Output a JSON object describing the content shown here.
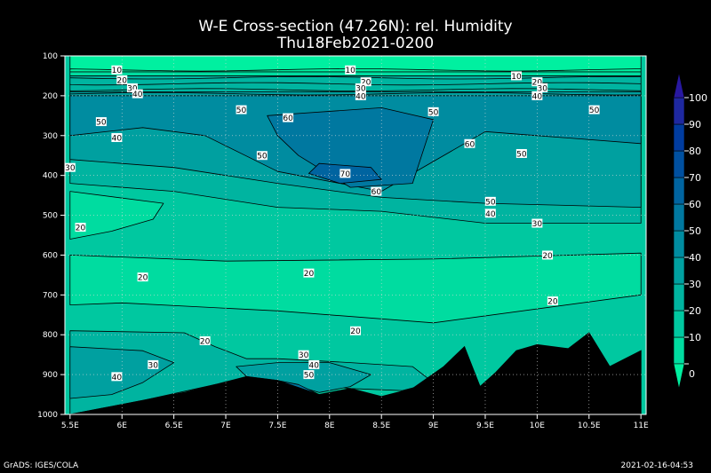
{
  "chart_data": {
    "type": "heatmap",
    "title": "W-E Cross-section (47.26N): rel. Humidity",
    "subtitle": "Thu18Feb2021-0200",
    "x_ticks": [
      "5.5E",
      "6E",
      "6.5E",
      "7E",
      "7.5E",
      "8E",
      "8.5E",
      "9E",
      "9.5E",
      "10E",
      "10.5E",
      "11E"
    ],
    "x_values": [
      5.5,
      6.0,
      6.5,
      7.0,
      7.5,
      8.0,
      8.5,
      9.0,
      9.5,
      10.0,
      10.5,
      11.0
    ],
    "xlim": [
      5.45,
      11.05
    ],
    "y_ticks": [
      "100",
      "200",
      "300",
      "400",
      "500",
      "600",
      "700",
      "800",
      "900",
      "1000"
    ],
    "y_values": [
      100,
      200,
      300,
      400,
      500,
      600,
      700,
      800,
      900,
      1000
    ],
    "ylim": [
      100,
      1000
    ],
    "grid": true,
    "colorbar": {
      "levels": [
        0,
        10,
        20,
        30,
        40,
        50,
        60,
        70,
        80,
        90,
        100
      ],
      "colors": [
        "#00f0a0",
        "#00dca0",
        "#00c8a0",
        "#00b4a0",
        "#00a0a0",
        "#008ca0",
        "#0078a0",
        "#0064a0",
        "#0050a0",
        "#003ca0",
        "#1e28a0",
        "#2818a0"
      ]
    },
    "contour_labels": [
      {
        "text": "10",
        "x": 5.95,
        "y": 135
      },
      {
        "text": "10",
        "x": 8.2,
        "y": 135
      },
      {
        "text": "10",
        "x": 9.8,
        "y": 150
      },
      {
        "text": "20",
        "x": 6.0,
        "y": 160
      },
      {
        "text": "20",
        "x": 8.35,
        "y": 165
      },
      {
        "text": "20",
        "x": 10.0,
        "y": 165
      },
      {
        "text": "30",
        "x": 6.1,
        "y": 180
      },
      {
        "text": "30",
        "x": 8.3,
        "y": 180
      },
      {
        "text": "30",
        "x": 10.05,
        "y": 180
      },
      {
        "text": "40",
        "x": 6.15,
        "y": 195
      },
      {
        "text": "40",
        "x": 8.3,
        "y": 200
      },
      {
        "text": "40",
        "x": 10.0,
        "y": 200
      },
      {
        "text": "50",
        "x": 5.8,
        "y": 265
      },
      {
        "text": "50",
        "x": 7.15,
        "y": 235
      },
      {
        "text": "50",
        "x": 9.0,
        "y": 240
      },
      {
        "text": "50",
        "x": 10.55,
        "y": 235
      },
      {
        "text": "60",
        "x": 7.6,
        "y": 255
      },
      {
        "text": "60",
        "x": 9.35,
        "y": 320
      },
      {
        "text": "40",
        "x": 5.95,
        "y": 305
      },
      {
        "text": "50",
        "x": 7.35,
        "y": 350
      },
      {
        "text": "50",
        "x": 9.85,
        "y": 345
      },
      {
        "text": "30",
        "x": 5.5,
        "y": 380
      },
      {
        "text": "70",
        "x": 8.15,
        "y": 395
      },
      {
        "text": "60",
        "x": 8.45,
        "y": 440
      },
      {
        "text": "50",
        "x": 9.55,
        "y": 465
      },
      {
        "text": "40",
        "x": 9.55,
        "y": 495
      },
      {
        "text": "30",
        "x": 10.0,
        "y": 520
      },
      {
        "text": "20",
        "x": 5.6,
        "y": 530
      },
      {
        "text": "20",
        "x": 10.1,
        "y": 600
      },
      {
        "text": "20",
        "x": 6.2,
        "y": 655
      },
      {
        "text": "20",
        "x": 7.8,
        "y": 645
      },
      {
        "text": "20",
        "x": 10.15,
        "y": 715
      },
      {
        "text": "20",
        "x": 6.8,
        "y": 815
      },
      {
        "text": "20",
        "x": 8.25,
        "y": 790
      },
      {
        "text": "30",
        "x": 7.75,
        "y": 850
      },
      {
        "text": "40",
        "x": 7.85,
        "y": 875
      },
      {
        "text": "50",
        "x": 7.8,
        "y": 900
      },
      {
        "text": "30",
        "x": 6.3,
        "y": 875
      },
      {
        "text": "40",
        "x": 5.95,
        "y": 905
      }
    ],
    "terrain_pressure": [
      {
        "x": 5.5,
        "p": 1000
      },
      {
        "x": 5.8,
        "p": 985
      },
      {
        "x": 6.2,
        "p": 965
      },
      {
        "x": 6.6,
        "p": 945
      },
      {
        "x": 6.9,
        "p": 925
      },
      {
        "x": 7.2,
        "p": 905
      },
      {
        "x": 7.5,
        "p": 915
      },
      {
        "x": 7.9,
        "p": 950
      },
      {
        "x": 8.2,
        "p": 935
      },
      {
        "x": 8.5,
        "p": 955
      },
      {
        "x": 8.8,
        "p": 935
      },
      {
        "x": 9.1,
        "p": 880
      },
      {
        "x": 9.3,
        "p": 830
      },
      {
        "x": 9.45,
        "p": 930
      },
      {
        "x": 9.6,
        "p": 895
      },
      {
        "x": 9.8,
        "p": 840
      },
      {
        "x": 10.0,
        "p": 825
      },
      {
        "x": 10.3,
        "p": 835
      },
      {
        "x": 10.5,
        "p": 795
      },
      {
        "x": 10.7,
        "p": 880
      },
      {
        "x": 11.0,
        "p": 840
      }
    ]
  },
  "footer": {
    "left": "GrADS: IGES/COLA",
    "right": "2021-02-16-04:53"
  }
}
